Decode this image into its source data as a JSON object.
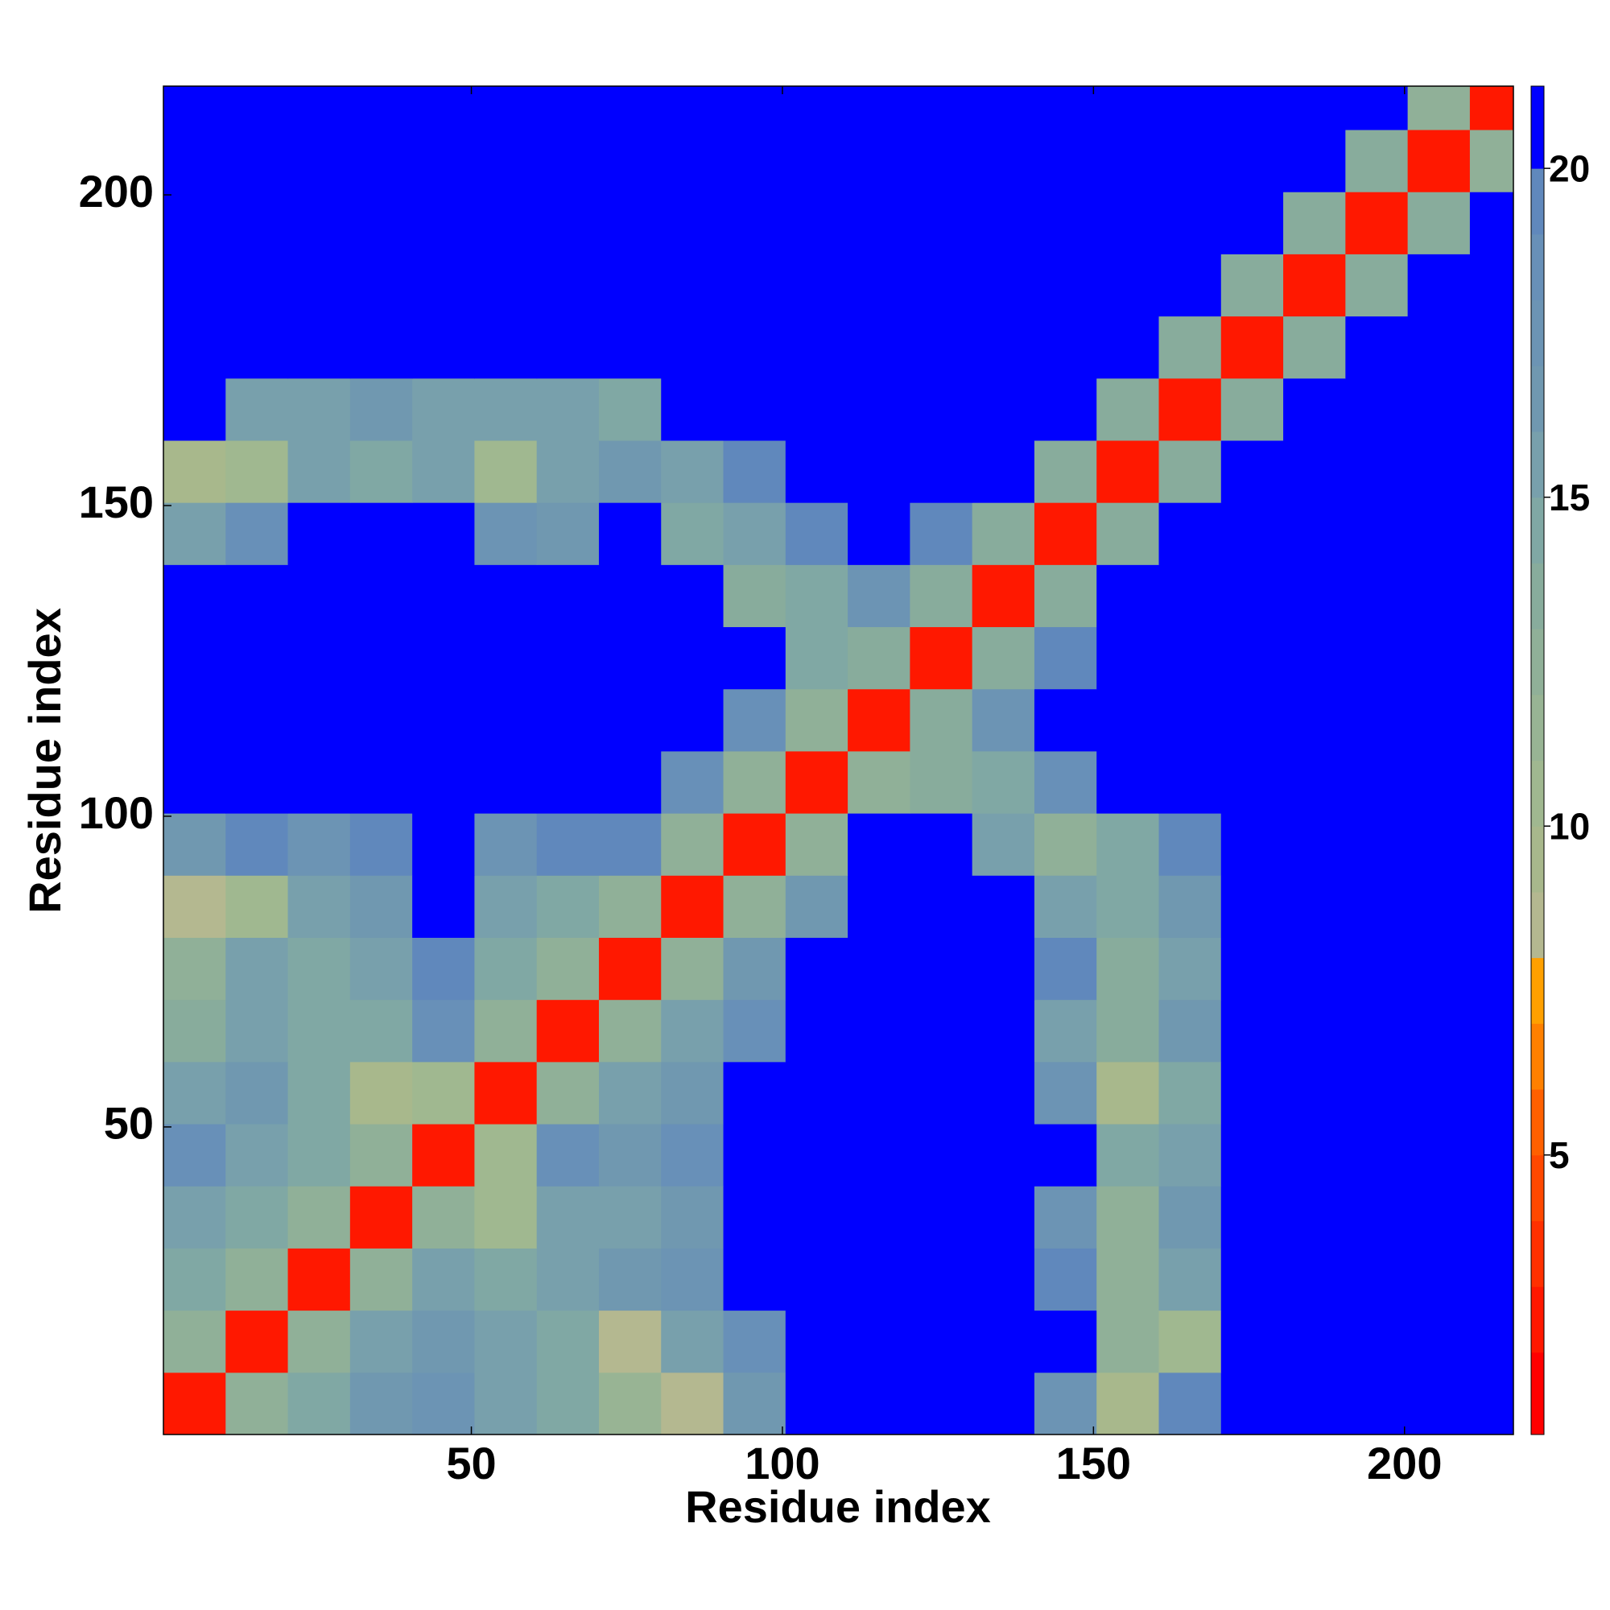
{
  "chart_data": {
    "type": "heatmap",
    "x_label": "Residue index",
    "y_label": "Residue index",
    "bins": [
      0.5,
      10.5,
      20.5,
      30.5,
      40.5,
      50.5,
      60.5,
      70.5,
      80.5,
      90.5,
      100.5,
      110.5,
      120.5,
      130.5,
      140.5,
      150.5,
      160.5,
      170.5,
      180.5,
      190.5,
      200.5,
      210.5,
      217.5
    ],
    "xlim": [
      0.5,
      217.5
    ],
    "ylim": [
      0.5,
      217.5
    ],
    "xticks": [
      50,
      100,
      150,
      200
    ],
    "yticks": [
      50,
      100,
      150,
      200
    ],
    "z": [
      [
        2.5,
        12,
        14,
        16,
        17,
        15,
        14,
        11,
        8,
        16,
        21,
        21,
        21,
        21,
        17,
        9,
        19,
        21,
        21,
        21,
        21,
        21
      ],
      [
        12,
        2.5,
        12,
        15,
        16,
        15,
        14,
        8,
        15,
        18,
        21,
        21,
        21,
        21,
        20,
        12,
        10,
        21,
        21,
        21,
        21,
        21
      ],
      [
        14,
        12,
        2.5,
        12,
        15,
        14,
        15,
        16,
        17,
        21,
        21,
        21,
        21,
        21,
        19,
        12,
        15,
        21,
        21,
        21,
        21,
        21
      ],
      [
        15,
        14,
        12,
        2.5,
        12,
        10,
        15,
        15,
        16,
        21,
        21,
        21,
        21,
        21,
        17,
        12,
        16,
        21,
        21,
        21,
        21,
        21
      ],
      [
        18,
        15,
        14,
        12,
        2.5,
        10,
        18,
        16,
        18,
        21,
        21,
        21,
        21,
        21,
        21,
        14,
        15,
        21,
        21,
        21,
        21,
        21
      ],
      [
        15,
        16,
        14,
        9,
        10,
        2.5,
        12,
        15,
        16,
        21,
        21,
        21,
        21,
        21,
        17,
        9,
        14,
        21,
        21,
        21,
        21,
        21
      ],
      [
        13,
        15,
        14,
        14,
        18,
        12,
        2.5,
        12,
        15,
        18,
        21,
        21,
        21,
        21,
        15,
        13,
        16,
        21,
        21,
        21,
        21,
        21
      ],
      [
        12,
        15,
        14,
        15,
        19,
        14,
        12,
        2.5,
        12,
        16,
        21,
        21,
        21,
        21,
        19,
        13,
        15,
        21,
        21,
        21,
        21,
        21
      ],
      [
        8,
        10,
        15,
        16,
        21,
        15,
        14,
        12,
        2.5,
        12,
        16,
        21,
        21,
        21,
        15,
        14,
        16,
        21,
        21,
        21,
        21,
        21
      ],
      [
        16,
        19,
        17,
        19,
        21,
        17,
        19,
        19,
        12,
        2.5,
        12,
        21,
        20,
        15,
        12,
        14,
        19,
        21,
        21,
        21,
        21,
        21
      ],
      [
        21,
        21,
        21,
        21,
        21,
        21,
        21,
        21,
        18,
        12,
        2.5,
        12,
        13,
        14,
        18,
        21,
        21,
        21,
        21,
        21,
        21,
        21
      ],
      [
        21,
        21,
        21,
        21,
        21,
        21,
        21,
        21,
        21,
        18,
        12,
        2.5,
        13,
        17,
        21,
        21,
        21,
        21,
        21,
        21,
        21,
        21
      ],
      [
        21,
        21,
        21,
        21,
        21,
        21,
        21,
        21,
        21,
        21,
        14,
        13,
        2.5,
        13,
        19,
        21,
        21,
        21,
        21,
        21,
        21,
        21
      ],
      [
        21,
        21,
        21,
        21,
        21,
        21,
        21,
        21,
        21,
        13,
        14,
        17,
        13,
        2.5,
        13,
        20,
        21,
        21,
        21,
        21,
        21,
        21
      ],
      [
        15,
        18,
        21,
        21,
        21,
        17,
        16,
        21,
        14,
        15,
        19,
        21,
        19,
        13,
        2.5,
        13,
        20,
        21,
        21,
        21,
        21,
        21
      ],
      [
        9,
        10,
        15,
        14,
        15,
        10,
        15,
        16,
        15,
        19,
        21,
        21,
        21,
        20,
        13,
        2.5,
        13,
        21,
        21,
        21,
        21,
        21
      ],
      [
        21,
        15,
        15,
        16,
        15,
        15,
        15,
        14,
        21,
        21,
        21,
        21,
        21,
        21,
        20,
        13,
        2.5,
        13,
        20,
        21,
        21,
        21
      ],
      [
        21,
        21,
        21,
        21,
        21,
        21,
        21,
        21,
        21,
        21,
        21,
        21,
        21,
        21,
        21,
        20,
        13,
        2.5,
        13,
        21,
        21,
        21
      ],
      [
        21,
        21,
        21,
        21,
        21,
        21,
        21,
        21,
        21,
        21,
        21,
        21,
        21,
        21,
        21,
        21,
        20,
        13,
        2.5,
        13,
        21,
        21
      ],
      [
        21,
        21,
        21,
        21,
        21,
        21,
        21,
        21,
        21,
        21,
        21,
        21,
        21,
        21,
        21,
        21,
        21,
        20,
        13,
        2.5,
        13,
        21
      ],
      [
        21,
        21,
        21,
        21,
        21,
        21,
        21,
        21,
        21,
        21,
        21,
        21,
        21,
        21,
        21,
        21,
        21,
        21,
        20,
        13,
        2.5,
        12
      ],
      [
        21,
        21,
        21,
        21,
        21,
        21,
        21,
        21,
        21,
        21,
        21,
        21,
        21,
        21,
        21,
        21,
        21,
        21,
        21,
        20,
        12,
        2.5
      ]
    ],
    "colorbar": {
      "levels": [
        0.75,
        2,
        3,
        4,
        5,
        6,
        7,
        8,
        9,
        10,
        11,
        12,
        13,
        14,
        15,
        16,
        17,
        18,
        19,
        20,
        21.25
      ],
      "colors": [
        "#ff0000",
        "#ff1800",
        "#ff3000",
        "#ff4800",
        "#ff6000",
        "#ff8000",
        "#ffa000",
        "#b4b890",
        "#a8b88c",
        "#a0b890",
        "#98b494",
        "#90b098",
        "#88ac9c",
        "#80a8a4",
        "#78a0ac",
        "#7098b0",
        "#6c94b4",
        "#6890b8",
        "#6088bc",
        "#0000ff"
      ],
      "ticks": [
        5,
        10,
        15,
        20
      ]
    }
  }
}
